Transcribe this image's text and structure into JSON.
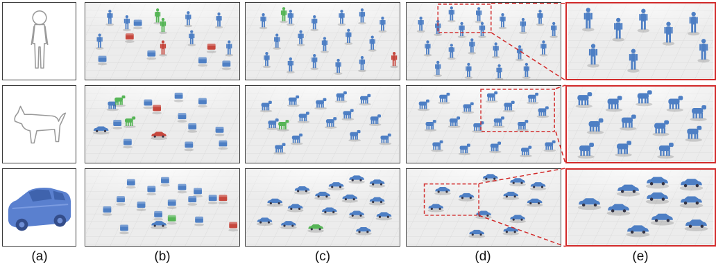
{
  "columns": [
    {
      "key": "a",
      "label": "(a)"
    },
    {
      "key": "b",
      "label": "(b)"
    },
    {
      "key": "c",
      "label": "(c)"
    },
    {
      "key": "d",
      "label": "(d)"
    },
    {
      "key": "e",
      "label": "(e)"
    }
  ],
  "rows": [
    "human",
    "animal",
    "car"
  ],
  "colors": {
    "primary_object": "#4e7fc4",
    "green_highlight": "#56b556",
    "red_highlight": "#c6473d",
    "zoom_frame": "#d22a2a",
    "panel_border": "#3a3a3a",
    "floor": "#ececec",
    "query_sketch": "#9a9a9a",
    "query_car": "#5a80cf"
  },
  "icons": {
    "row1_query": "human-sketch-icon",
    "row2_query": "dog-sketch-icon",
    "row3_query": "car-model-icon"
  }
}
